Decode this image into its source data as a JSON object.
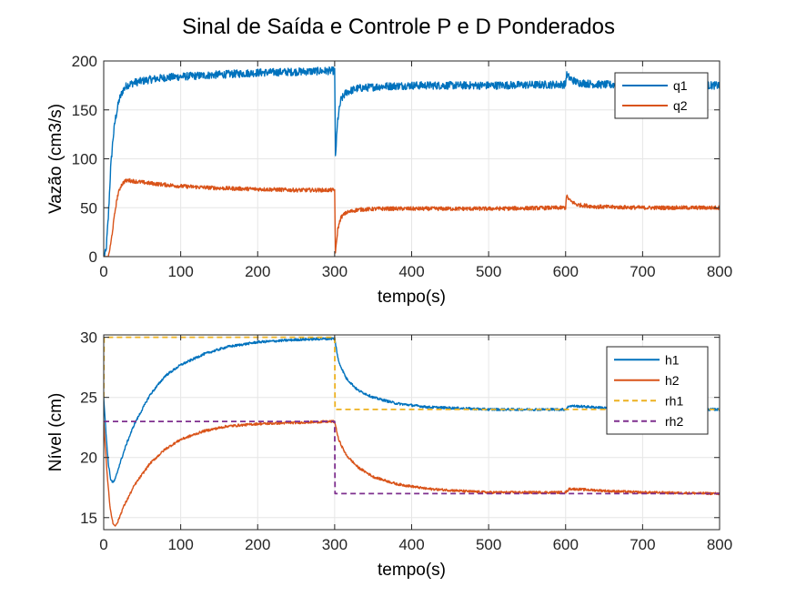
{
  "figure": {
    "title": "Sinal de Saída e Controle P e D Ponderados"
  },
  "colors": {
    "blue": "#0072BD",
    "orange": "#D95319",
    "yellow": "#EDB120",
    "purple": "#7E2F8E",
    "grid": "#e6e6e6",
    "axis": "#262626"
  },
  "chart_data": [
    {
      "type": "line",
      "title": "",
      "xlabel": "tempo(s)",
      "ylabel": "Vazão (cm3/s)",
      "xlim": [
        0,
        800
      ],
      "ylim": [
        0,
        200
      ],
      "xticks": [
        0,
        100,
        200,
        300,
        400,
        500,
        600,
        700,
        800
      ],
      "yticks": [
        0,
        50,
        100,
        150,
        200
      ],
      "grid": true,
      "legend_position": "top-right",
      "series": [
        {
          "name": "q1",
          "color": "#0072BD",
          "style": "solid",
          "noise": 4,
          "points": [
            [
              0,
              0
            ],
            [
              3,
              5
            ],
            [
              6,
              40
            ],
            [
              9,
              90
            ],
            [
              12,
              120
            ],
            [
              15,
              140
            ],
            [
              20,
              160
            ],
            [
              25,
              170
            ],
            [
              30,
              175
            ],
            [
              40,
              178
            ],
            [
              60,
              181
            ],
            [
              80,
              183
            ],
            [
              100,
              184
            ],
            [
              150,
              186
            ],
            [
              200,
              188
            ],
            [
              250,
              189
            ],
            [
              298,
              190
            ],
            [
              300,
              190
            ],
            [
              301,
              102
            ],
            [
              304,
              140
            ],
            [
              308,
              160
            ],
            [
              315,
              168
            ],
            [
              330,
              172
            ],
            [
              360,
              174
            ],
            [
              400,
              175
            ],
            [
              500,
              175
            ],
            [
              598,
              176
            ],
            [
              600,
              176
            ],
            [
              601,
              186
            ],
            [
              606,
              182
            ],
            [
              615,
              178
            ],
            [
              640,
              176
            ],
            [
              700,
              175
            ],
            [
              800,
              175
            ]
          ]
        },
        {
          "name": "q2",
          "color": "#D95319",
          "style": "solid",
          "noise": 2,
          "points": [
            [
              0,
              0
            ],
            [
              6,
              0
            ],
            [
              9,
              12
            ],
            [
              12,
              30
            ],
            [
              15,
              48
            ],
            [
              18,
              62
            ],
            [
              22,
              72
            ],
            [
              27,
              77
            ],
            [
              32,
              78
            ],
            [
              40,
              77
            ],
            [
              60,
              75
            ],
            [
              100,
              72
            ],
            [
              150,
              70
            ],
            [
              200,
              69
            ],
            [
              250,
              68
            ],
            [
              298,
              68
            ],
            [
              300,
              68
            ],
            [
              301,
              3
            ],
            [
              304,
              28
            ],
            [
              308,
              40
            ],
            [
              315,
              45
            ],
            [
              330,
              48
            ],
            [
              360,
              49
            ],
            [
              400,
              49
            ],
            [
              500,
              49
            ],
            [
              598,
              50
            ],
            [
              600,
              50
            ],
            [
              601,
              62
            ],
            [
              606,
              57
            ],
            [
              615,
              53
            ],
            [
              640,
              51
            ],
            [
              700,
              50
            ],
            [
              800,
              50
            ]
          ]
        }
      ]
    },
    {
      "type": "line",
      "title": "",
      "xlabel": "tempo(s)",
      "ylabel": "Nível (cm)",
      "xlim": [
        0,
        800
      ],
      "ylim": [
        14,
        30.2
      ],
      "xticks": [
        0,
        100,
        200,
        300,
        400,
        500,
        600,
        700,
        800
      ],
      "yticks": [
        15,
        20,
        25,
        30
      ],
      "grid": true,
      "legend_position": "top-right",
      "series": [
        {
          "name": "h1",
          "color": "#0072BD",
          "style": "solid",
          "noise": 0.1,
          "points": [
            [
              0,
              25
            ],
            [
              3,
              22
            ],
            [
              6,
              19.5
            ],
            [
              9,
              18.2
            ],
            [
              12,
              17.9
            ],
            [
              15,
              18.2
            ],
            [
              20,
              19.3
            ],
            [
              30,
              21.2
            ],
            [
              40,
              22.8
            ],
            [
              60,
              25.2
            ],
            [
              80,
              26.8
            ],
            [
              100,
              27.7
            ],
            [
              130,
              28.6
            ],
            [
              160,
              29.2
            ],
            [
              200,
              29.6
            ],
            [
              250,
              29.8
            ],
            [
              299,
              29.9
            ],
            [
              300,
              29.9
            ],
            [
              305,
              28
            ],
            [
              315,
              26.6
            ],
            [
              330,
              25.6
            ],
            [
              350,
              25
            ],
            [
              380,
              24.5
            ],
            [
              420,
              24.2
            ],
            [
              500,
              24
            ],
            [
              598,
              24
            ],
            [
              600,
              24
            ],
            [
              605,
              24.3
            ],
            [
              620,
              24.25
            ],
            [
              660,
              24.1
            ],
            [
              700,
              24
            ],
            [
              800,
              24
            ]
          ]
        },
        {
          "name": "h2",
          "color": "#D95319",
          "style": "solid",
          "noise": 0.1,
          "points": [
            [
              0,
              23
            ],
            [
              4,
              19
            ],
            [
              8,
              16
            ],
            [
              12,
              14.5
            ],
            [
              15,
              14.3
            ],
            [
              18,
              14.6
            ],
            [
              25,
              15.8
            ],
            [
              40,
              17.7
            ],
            [
              60,
              19.5
            ],
            [
              80,
              20.7
            ],
            [
              100,
              21.5
            ],
            [
              130,
              22.2
            ],
            [
              160,
              22.6
            ],
            [
              200,
              22.8
            ],
            [
              250,
              22.9
            ],
            [
              299,
              23
            ],
            [
              300,
              23
            ],
            [
              305,
              21.5
            ],
            [
              315,
              20.2
            ],
            [
              330,
              19.2
            ],
            [
              350,
              18.4
            ],
            [
              380,
              17.8
            ],
            [
              420,
              17.4
            ],
            [
              470,
              17.2
            ],
            [
              500,
              17.1
            ],
            [
              598,
              17.1
            ],
            [
              600,
              17.1
            ],
            [
              605,
              17.4
            ],
            [
              620,
              17.35
            ],
            [
              660,
              17.2
            ],
            [
              700,
              17.1
            ],
            [
              800,
              17
            ]
          ]
        },
        {
          "name": "rh1",
          "color": "#EDB120",
          "style": "dashed",
          "noise": 0,
          "points": [
            [
              0,
              25
            ],
            [
              0.5,
              30
            ],
            [
              300,
              30
            ],
            [
              300.5,
              24
            ],
            [
              800,
              24
            ]
          ]
        },
        {
          "name": "rh2",
          "color": "#7E2F8E",
          "style": "dashed",
          "noise": 0,
          "points": [
            [
              0,
              23
            ],
            [
              300,
              23
            ],
            [
              300.5,
              17
            ],
            [
              800,
              17
            ]
          ]
        }
      ]
    }
  ]
}
